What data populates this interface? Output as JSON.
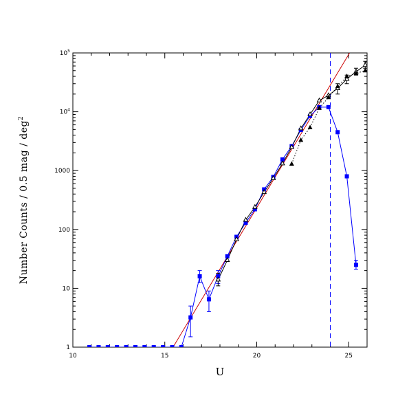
{
  "chart_data": {
    "type": "line",
    "title": "",
    "xlabel": "U",
    "ylabel": "Number Counts / 0.5 mag / deg",
    "ylabel_exponent": "2",
    "xlim": [
      10,
      26
    ],
    "ylim": [
      1,
      100000
    ],
    "yscale": "log",
    "grid": false,
    "x_ticks": [
      {
        "value": 10,
        "label": "10"
      },
      {
        "value": 15,
        "label": "15"
      },
      {
        "value": 20,
        "label": "20"
      },
      {
        "value": 25,
        "label": "25"
      }
    ],
    "y_ticks": [
      {
        "value": 1,
        "label": "1"
      },
      {
        "value": 10,
        "label": "10"
      },
      {
        "value": 100,
        "label": "100"
      },
      {
        "value": 1000,
        "label": "1000"
      },
      {
        "value": 10000,
        "base": "10",
        "exp": "4"
      },
      {
        "value": 100000,
        "base": "10",
        "exp": "5"
      }
    ],
    "series": [
      {
        "color": "#0000ff",
        "marker": "square",
        "line": "solid",
        "points": [
          {
            "x": 10.9,
            "y": 1
          },
          {
            "x": 11.4,
            "y": 1
          },
          {
            "x": 11.9,
            "y": 1
          },
          {
            "x": 12.4,
            "y": 1
          },
          {
            "x": 12.9,
            "y": 1
          },
          {
            "x": 13.4,
            "y": 1
          },
          {
            "x": 13.9,
            "y": 1
          },
          {
            "x": 14.4,
            "y": 1
          },
          {
            "x": 14.9,
            "y": 1
          },
          {
            "x": 15.4,
            "y": 1
          },
          {
            "x": 15.9,
            "y": 1
          },
          {
            "x": 16.4,
            "y": 3.2,
            "ylo": 1.5,
            "yhi": 5
          },
          {
            "x": 16.9,
            "y": 16,
            "ylo": 12.5,
            "yhi": 20
          },
          {
            "x": 17.4,
            "y": 6.5,
            "ylo": 4,
            "yhi": 9
          },
          {
            "x": 17.9,
            "y": 16,
            "ylo": 12,
            "yhi": 20
          },
          {
            "x": 18.4,
            "y": 35
          },
          {
            "x": 18.9,
            "y": 75
          },
          {
            "x": 19.4,
            "y": 130
          },
          {
            "x": 19.9,
            "y": 220
          },
          {
            "x": 20.4,
            "y": 480
          },
          {
            "x": 20.9,
            "y": 780
          },
          {
            "x": 21.4,
            "y": 1550
          },
          {
            "x": 21.9,
            "y": 2600
          },
          {
            "x": 22.4,
            "y": 4900
          },
          {
            "x": 22.9,
            "y": 8500
          },
          {
            "x": 23.4,
            "y": 12000
          },
          {
            "x": 23.9,
            "y": 12000
          },
          {
            "x": 24.4,
            "y": 4500
          },
          {
            "x": 24.9,
            "y": 800
          },
          {
            "x": 25.4,
            "y": 25,
            "ylo": 21,
            "yhi": 30
          }
        ]
      },
      {
        "color": "#000000",
        "marker": "open-triangle",
        "line": "solid",
        "points": [
          {
            "x": 17.9,
            "y": 14,
            "ylo": 11,
            "yhi": 18
          },
          {
            "x": 18.4,
            "y": 30
          },
          {
            "x": 18.9,
            "y": 68
          },
          {
            "x": 19.4,
            "y": 145
          },
          {
            "x": 19.9,
            "y": 240
          },
          {
            "x": 20.4,
            "y": 430
          },
          {
            "x": 20.9,
            "y": 740
          },
          {
            "x": 21.4,
            "y": 1320
          },
          {
            "x": 21.9,
            "y": 2500
          },
          {
            "x": 22.4,
            "y": 5200
          },
          {
            "x": 22.9,
            "y": 9000
          },
          {
            "x": 23.4,
            "y": 15500
          },
          {
            "x": 23.9,
            "y": 19000
          },
          {
            "x": 24.4,
            "y": 25000,
            "ylo": 20000,
            "yhi": 30000
          },
          {
            "x": 24.9,
            "y": 36000,
            "ylo": 30000,
            "yhi": 42000
          },
          {
            "x": 25.4,
            "y": 48000,
            "ylo": 42000,
            "yhi": 55000
          },
          {
            "x": 25.9,
            "y": 62000,
            "ylo": 55000,
            "yhi": 72000
          }
        ]
      },
      {
        "color": "#000000",
        "marker": "filled-triangle",
        "line": "dotted",
        "points": [
          {
            "x": 21.9,
            "y": 1300
          },
          {
            "x": 22.4,
            "y": 3300
          },
          {
            "x": 22.9,
            "y": 5400
          },
          {
            "x": 23.4,
            "y": 11500
          },
          {
            "x": 23.9,
            "y": 17500
          },
          {
            "x": 24.4,
            "y": 27000
          },
          {
            "x": 24.9,
            "y": 40000
          },
          {
            "x": 25.4,
            "y": 45000
          },
          {
            "x": 25.9,
            "y": 50000
          }
        ]
      }
    ],
    "fit_line": {
      "color": "#cc0000",
      "x": [
        15.45,
        25.05
      ],
      "y": [
        1,
        100000
      ]
    },
    "limit_line": {
      "color": "#0000ff",
      "style": "dashed",
      "x": 24.0
    }
  }
}
